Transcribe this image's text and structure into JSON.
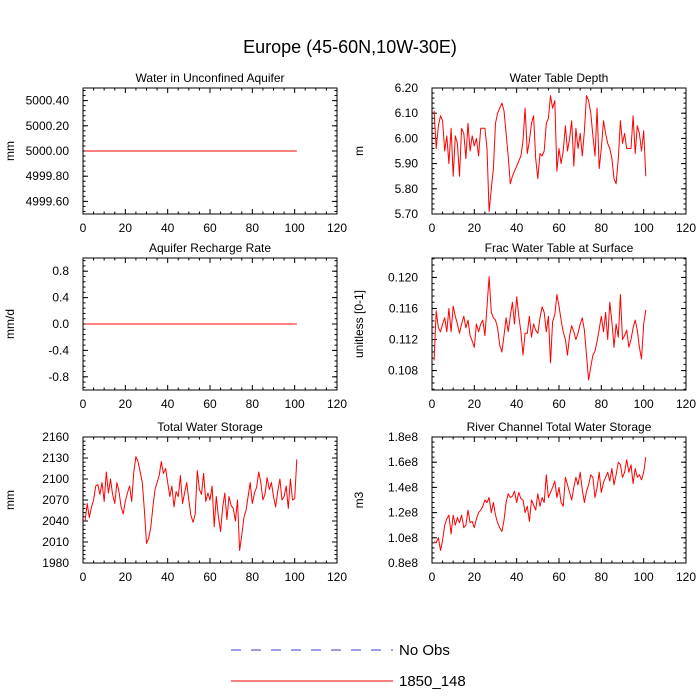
{
  "title": "Europe (45-60N,10W-30E)",
  "colors": {
    "obs": "#3a3ad6",
    "model": "#ff0000",
    "axis": "#000000"
  },
  "legend": [
    {
      "label": "No Obs",
      "style": "dashed",
      "color": "#3a3ad6"
    },
    {
      "label": "1850_148",
      "style": "solid",
      "color": "#ff0000"
    }
  ],
  "chart_data": [
    {
      "type": "line",
      "title": "Water in Unconfined Aquifer",
      "ylabel": "mm",
      "xlabel": "",
      "xlim": [
        0,
        120
      ],
      "ylim": [
        4999.5,
        5000.5
      ],
      "xticks": [
        0,
        20,
        40,
        60,
        80,
        100,
        120
      ],
      "yticks": [
        4999.6,
        4999.8,
        5000.0,
        5000.2,
        5000.4
      ],
      "yticklabels": [
        "4999.60",
        "4999.80",
        "5000.00",
        "5000.20",
        "5000.40"
      ],
      "series": [
        {
          "name": "1850_148",
          "mode": "const",
          "value": 5000.0,
          "x0": 1,
          "x1": 101
        }
      ]
    },
    {
      "type": "line",
      "title": "Water Table Depth",
      "ylabel": "m",
      "xlabel": "",
      "xlim": [
        0,
        120
      ],
      "ylim": [
        5.7,
        6.2
      ],
      "xticks": [
        0,
        20,
        40,
        60,
        80,
        100,
        120
      ],
      "yticks": [
        5.7,
        5.8,
        5.9,
        6.0,
        6.1,
        6.2
      ],
      "yticklabels": [
        "5.70",
        "5.80",
        "5.90",
        "6.00",
        "6.10",
        "6.20"
      ],
      "series": [
        {
          "name": "1850_148",
          "x0": 1,
          "values": [
            6.11,
            5.96,
            6.05,
            6.09,
            6.07,
            5.95,
            6.01,
            5.9,
            6.04,
            5.85,
            6.01,
            5.98,
            5.85,
            6.04,
            6.02,
            5.92,
            6.06,
            5.95,
            6.01,
            5.97,
            6.0,
            5.93,
            6.04,
            6.04,
            6.04,
            5.96,
            5.71,
            5.8,
            5.88,
            6.06,
            6.1,
            6.12,
            6.14,
            6.11,
            6.02,
            5.93,
            5.82,
            5.85,
            5.87,
            5.89,
            5.91,
            5.93,
            5.99,
            6.12,
            5.94,
            5.99,
            6.06,
            6.09,
            5.92,
            5.84,
            5.94,
            5.93,
            5.95,
            6.06,
            6.08,
            6.17,
            6.12,
            6.15,
            5.87,
            5.96,
            5.9,
            5.95,
            6.05,
            5.95,
            6.0,
            6.07,
            5.89,
            6.04,
            5.96,
            6.02,
            5.93,
            6.03,
            6.17,
            6.15,
            6.1,
            6.01,
            5.93,
            6.12,
            5.88,
            5.96,
            6.07,
            6.02,
            5.98,
            5.96,
            5.92,
            5.84,
            5.82,
            5.92,
            6.07,
            5.98,
            6.02,
            5.96,
            5.96,
            5.96,
            6.09,
            5.94,
            6.05,
            6.02,
            5.95,
            6.03,
            5.85
          ]
        }
      ]
    },
    {
      "type": "line",
      "title": "Aquifer Recharge Rate",
      "ylabel": "mm/d",
      "xlabel": "",
      "xlim": [
        0,
        120
      ],
      "ylim": [
        -1.0,
        1.0
      ],
      "xticks": [
        0,
        20,
        40,
        60,
        80,
        100,
        120
      ],
      "yticks": [
        -0.8,
        -0.4,
        0.0,
        0.4,
        0.8
      ],
      "yticklabels": [
        "-0.8",
        "-0.4",
        "0.0",
        "0.4",
        "0.8"
      ],
      "series": [
        {
          "name": "1850_148",
          "mode": "const",
          "value": 0.0,
          "x0": 1,
          "x1": 101
        }
      ]
    },
    {
      "type": "line",
      "title": "Frac Water Table at Surface",
      "ylabel": "unitless [0-1]",
      "xlabel": "",
      "xlim": [
        0,
        120
      ],
      "ylim": [
        0.1055,
        0.1225
      ],
      "xticks": [
        0,
        20,
        40,
        60,
        80,
        100,
        120
      ],
      "yticks": [
        0.108,
        0.112,
        0.116,
        0.12
      ],
      "yticklabels": [
        "0.108",
        "0.112",
        "0.116",
        "0.120"
      ],
      "series": [
        {
          "name": "1850_148",
          "x0": 1,
          "values": [
            0.1093,
            0.1157,
            0.1135,
            0.113,
            0.114,
            0.1148,
            0.113,
            0.116,
            0.113,
            0.1163,
            0.115,
            0.114,
            0.1128,
            0.114,
            0.115,
            0.1135,
            0.1145,
            0.1125,
            0.1118,
            0.111,
            0.114,
            0.113,
            0.114,
            0.1145,
            0.1125,
            0.1162,
            0.1201,
            0.1155,
            0.1148,
            0.1145,
            0.1135,
            0.1113,
            0.1104,
            0.1125,
            0.1148,
            0.113,
            0.115,
            0.1168,
            0.114,
            0.1175,
            0.115,
            0.113,
            0.11,
            0.1128,
            0.1128,
            0.115,
            0.1123,
            0.114,
            0.1132,
            0.1128,
            0.1148,
            0.1162,
            0.1155,
            0.113,
            0.115,
            0.109,
            0.1143,
            0.1152,
            0.1178,
            0.1163,
            0.1145,
            0.113,
            0.112,
            0.11,
            0.1125,
            0.1138,
            0.113,
            0.112,
            0.1128,
            0.114,
            0.1148,
            0.1132,
            0.11,
            0.1068,
            0.1085,
            0.11,
            0.1105,
            0.1118,
            0.1133,
            0.115,
            0.113,
            0.1155,
            0.112,
            0.1168,
            0.1143,
            0.111,
            0.114,
            0.1123,
            0.1178,
            0.112,
            0.1125,
            0.1132,
            0.111,
            0.112,
            0.1135,
            0.1145,
            0.1132,
            0.111,
            0.1095,
            0.114,
            0.1158
          ]
        }
      ]
    },
    {
      "type": "line",
      "title": "Total Water Storage",
      "ylabel": "mm",
      "xlabel": "",
      "xlim": [
        0,
        120
      ],
      "ylim": [
        1980,
        2160
      ],
      "xticks": [
        0,
        20,
        40,
        60,
        80,
        100,
        120
      ],
      "yticks": [
        1980,
        2010,
        2040,
        2070,
        2100,
        2130,
        2160
      ],
      "yticklabels": [
        "1980",
        "2010",
        "2040",
        "2070",
        "2100",
        "2130",
        "2160"
      ],
      "series": [
        {
          "name": "1850_148",
          "x0": 1,
          "values": [
            2040,
            2065,
            2045,
            2060,
            2070,
            2090,
            2092,
            2078,
            2095,
            2068,
            2110,
            2080,
            2100,
            2078,
            2065,
            2095,
            2082,
            2060,
            2050,
            2068,
            2080,
            2090,
            2068,
            2110,
            2132,
            2125,
            2110,
            2095,
            2055,
            2008,
            2015,
            2030,
            2060,
            2085,
            2095,
            2105,
            2125,
            2108,
            2115,
            2095,
            2075,
            2090,
            2060,
            2082,
            2075,
            2105,
            2065,
            2080,
            2095,
            2070,
            2048,
            2038,
            2050,
            2112,
            2085,
            2078,
            2108,
            2068,
            2080,
            2070,
            2090,
            2032,
            2075,
            2045,
            2025,
            2060,
            2080,
            2042,
            2075,
            2062,
            2058,
            2040,
            2070,
            1998,
            2020,
            2045,
            2055,
            2075,
            2095,
            2065,
            2080,
            2088,
            2110,
            2095,
            2070,
            2078,
            2102,
            2085,
            2095,
            2075,
            2060,
            2082,
            2100,
            2070,
            2075,
            2090,
            2058,
            2100,
            2070,
            2072,
            2128
          ]
        }
      ]
    },
    {
      "type": "line",
      "title": "River Channel Total Water Storage",
      "ylabel": "m3",
      "xlabel": "",
      "xlim": [
        0,
        120
      ],
      "ylim": [
        80000000,
        180000000
      ],
      "xticks": [
        0,
        20,
        40,
        60,
        80,
        100,
        120
      ],
      "yticks": [
        80000000,
        100000000,
        120000000,
        140000000,
        160000000,
        180000000
      ],
      "yticklabels": [
        "0.8e8",
        "1.0e8",
        "1.2e8",
        "1.4e8",
        "1.6e8",
        "1.8e8"
      ],
      "series": [
        {
          "name": "1850_148",
          "x0": 1,
          "values": [
            97000000,
            96000000,
            100000000,
            90000000,
            98000000,
            110000000,
            115000000,
            118000000,
            103000000,
            118000000,
            110000000,
            116000000,
            112000000,
            118000000,
            108000000,
            110000000,
            122000000,
            112000000,
            113000000,
            108000000,
            115000000,
            120000000,
            122000000,
            125000000,
            130000000,
            128000000,
            132000000,
            120000000,
            128000000,
            118000000,
            112000000,
            108000000,
            105000000,
            114000000,
            128000000,
            135000000,
            132000000,
            133000000,
            137000000,
            128000000,
            136000000,
            131000000,
            130000000,
            120000000,
            125000000,
            113000000,
            130000000,
            126000000,
            122000000,
            135000000,
            125000000,
            132000000,
            128000000,
            150000000,
            132000000,
            136000000,
            140000000,
            145000000,
            132000000,
            140000000,
            128000000,
            125000000,
            148000000,
            142000000,
            136000000,
            130000000,
            140000000,
            148000000,
            142000000,
            152000000,
            138000000,
            128000000,
            137000000,
            142000000,
            150000000,
            148000000,
            132000000,
            140000000,
            152000000,
            136000000,
            144000000,
            148000000,
            152000000,
            145000000,
            155000000,
            142000000,
            150000000,
            160000000,
            158000000,
            148000000,
            152000000,
            162000000,
            152000000,
            158000000,
            143000000,
            155000000,
            148000000,
            150000000,
            146000000,
            152000000,
            164000000
          ]
        }
      ]
    }
  ]
}
